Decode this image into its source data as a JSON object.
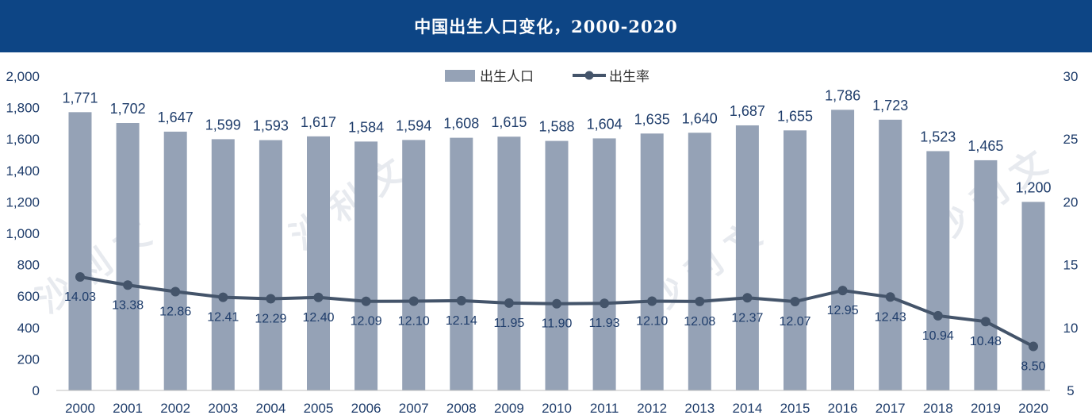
{
  "title": "中国出生人口变化，2000-2020",
  "watermark_text": "沙 利 文",
  "colors": {
    "header": "#0d4585",
    "bar": "#95a2b6",
    "line": "#44546a",
    "text": "#1f3d6b"
  },
  "chart_data": {
    "type": "bar+line",
    "title": "中国出生人口变化，2000-2020",
    "categories": [
      "2000",
      "2001",
      "2002",
      "2003",
      "2004",
      "2005",
      "2006",
      "2007",
      "2008",
      "2009",
      "2010",
      "2011",
      "2012",
      "2013",
      "2014",
      "2015",
      "2016",
      "2017",
      "2018",
      "2019",
      "2020"
    ],
    "series": [
      {
        "name": "出生人口",
        "type": "bar",
        "axis": "left",
        "values": [
          1771,
          1702,
          1647,
          1599,
          1593,
          1617,
          1584,
          1594,
          1608,
          1615,
          1588,
          1604,
          1635,
          1640,
          1687,
          1655,
          1786,
          1723,
          1523,
          1465,
          1200
        ],
        "labels": [
          "1,771",
          "1,702",
          "1,647",
          "1,599",
          "1,593",
          "1,617",
          "1,584",
          "1,594",
          "1,608",
          "1,615",
          "1,588",
          "1,604",
          "1,635",
          "1,640",
          "1,687",
          "1,655",
          "1,786",
          "1,723",
          "1,523",
          "1,465",
          "1,200"
        ]
      },
      {
        "name": "出生率",
        "type": "line",
        "axis": "right",
        "values": [
          14.03,
          13.38,
          12.86,
          12.41,
          12.29,
          12.4,
          12.09,
          12.1,
          12.14,
          11.95,
          11.9,
          11.93,
          12.1,
          12.08,
          12.37,
          12.07,
          12.95,
          12.43,
          10.94,
          10.48,
          8.5
        ],
        "labels": [
          "14.03",
          "13.38",
          "12.86",
          "12.41",
          "12.29",
          "12.40",
          "12.09",
          "12.10",
          "12.14",
          "11.95",
          "11.90",
          "11.93",
          "12.10",
          "12.08",
          "12.37",
          "12.07",
          "12.95",
          "12.43",
          "10.94",
          "10.48",
          "8.50"
        ]
      }
    ],
    "y_left": {
      "min": 0,
      "max": 2000,
      "ticks": [
        "0",
        "200",
        "400",
        "600",
        "800",
        "1,000",
        "1,200",
        "1,400",
        "1,600",
        "1,800",
        "2,000"
      ]
    },
    "y_right": {
      "min": 5,
      "max": 30,
      "ticks": [
        "5",
        "10",
        "15",
        "20",
        "25",
        "30"
      ]
    },
    "legend": {
      "position": "top-center",
      "items": [
        "出生人口",
        "出生率"
      ]
    },
    "grid": false
  }
}
